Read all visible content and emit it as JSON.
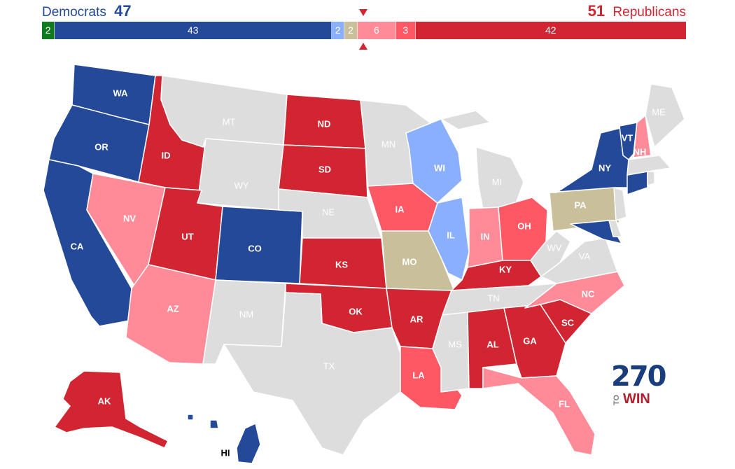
{
  "header": {
    "dem_name": "Democrats",
    "dem_total": "47",
    "rep_total": "51",
    "rep_name": "Republicans"
  },
  "tally": [
    {
      "label": "2",
      "value": 2,
      "color": "#0f7a1e"
    },
    {
      "label": "43",
      "value": 43,
      "color": "#244999"
    },
    {
      "label": "2",
      "value": 2,
      "color": "#8aafff"
    },
    {
      "label": "2",
      "value": 2,
      "color": "#c9c09b"
    },
    {
      "label": "6",
      "value": 6,
      "color": "#ff8b98"
    },
    {
      "label": "3",
      "value": 3,
      "color": "#ff5865"
    },
    {
      "label": "42",
      "value": 42,
      "color": "#d22532"
    }
  ],
  "colors": {
    "safe_dem": "#244999",
    "lean_dem": "#8aafff",
    "tossup": "#c9c09b",
    "lean_rep": "#ff8b98",
    "likely_rep": "#ff5865",
    "safe_rep": "#d22532",
    "no_race": "#dddddd"
  },
  "states": [
    {
      "abbr": "WA",
      "rating": "safe_dem",
      "label": "WA"
    },
    {
      "abbr": "OR",
      "rating": "safe_dem",
      "label": "OR"
    },
    {
      "abbr": "CA",
      "rating": "safe_dem",
      "label": "CA"
    },
    {
      "abbr": "ID",
      "rating": "safe_rep",
      "label": "ID"
    },
    {
      "abbr": "NV",
      "rating": "lean_rep",
      "label": "NV"
    },
    {
      "abbr": "MT",
      "rating": "no_race",
      "label": "MT"
    },
    {
      "abbr": "WY",
      "rating": "no_race",
      "label": "WY"
    },
    {
      "abbr": "UT",
      "rating": "safe_rep",
      "label": "UT"
    },
    {
      "abbr": "AZ",
      "rating": "lean_rep",
      "label": "AZ"
    },
    {
      "abbr": "CO",
      "rating": "safe_dem",
      "label": "CO"
    },
    {
      "abbr": "NM",
      "rating": "no_race",
      "label": "NM"
    },
    {
      "abbr": "ND",
      "rating": "safe_rep",
      "label": "ND"
    },
    {
      "abbr": "SD",
      "rating": "safe_rep",
      "label": "SD"
    },
    {
      "abbr": "NE",
      "rating": "no_race",
      "label": "NE"
    },
    {
      "abbr": "KS",
      "rating": "safe_rep",
      "label": "KS"
    },
    {
      "abbr": "OK",
      "rating": "safe_rep",
      "label": "OK"
    },
    {
      "abbr": "TX",
      "rating": "no_race",
      "label": "TX"
    },
    {
      "abbr": "MN",
      "rating": "no_race",
      "label": "MN"
    },
    {
      "abbr": "IA",
      "rating": "likely_rep",
      "label": "IA"
    },
    {
      "abbr": "MO",
      "rating": "tossup",
      "label": "MO"
    },
    {
      "abbr": "AR",
      "rating": "safe_rep",
      "label": "AR"
    },
    {
      "abbr": "LA",
      "rating": "likely_rep",
      "label": "LA"
    },
    {
      "abbr": "WI",
      "rating": "lean_dem",
      "label": "WI"
    },
    {
      "abbr": "IL",
      "rating": "lean_dem",
      "label": "IL"
    },
    {
      "abbr": "MI",
      "rating": "no_race",
      "label": "MI"
    },
    {
      "abbr": "IN",
      "rating": "lean_rep",
      "label": "IN"
    },
    {
      "abbr": "OH",
      "rating": "likely_rep",
      "label": "OH"
    },
    {
      "abbr": "KY",
      "rating": "safe_rep",
      "label": "KY"
    },
    {
      "abbr": "TN",
      "rating": "no_race",
      "label": "TN"
    },
    {
      "abbr": "MS",
      "rating": "no_race",
      "label": "MS"
    },
    {
      "abbr": "AL",
      "rating": "safe_rep",
      "label": "AL"
    },
    {
      "abbr": "GA",
      "rating": "safe_rep",
      "label": "GA"
    },
    {
      "abbr": "FL",
      "rating": "lean_rep",
      "label": "FL"
    },
    {
      "abbr": "SC",
      "rating": "safe_rep",
      "label": "SC"
    },
    {
      "abbr": "NC",
      "rating": "lean_rep",
      "label": "NC"
    },
    {
      "abbr": "VA",
      "rating": "no_race",
      "label": "VA"
    },
    {
      "abbr": "WV",
      "rating": "no_race",
      "label": "WV"
    },
    {
      "abbr": "PA",
      "rating": "tossup",
      "label": "PA"
    },
    {
      "abbr": "MD",
      "rating": "safe_dem",
      "label": ""
    },
    {
      "abbr": "DE",
      "rating": "no_race",
      "label": ""
    },
    {
      "abbr": "NJ",
      "rating": "no_race",
      "label": ""
    },
    {
      "abbr": "NY",
      "rating": "safe_dem",
      "label": "NY"
    },
    {
      "abbr": "CT",
      "rating": "safe_dem",
      "label": ""
    },
    {
      "abbr": "RI",
      "rating": "no_race",
      "label": ""
    },
    {
      "abbr": "MA",
      "rating": "no_race",
      "label": ""
    },
    {
      "abbr": "VT",
      "rating": "safe_dem",
      "label": "VT"
    },
    {
      "abbr": "NH",
      "rating": "lean_rep",
      "label": "NH"
    },
    {
      "abbr": "ME",
      "rating": "no_race",
      "label": "ME"
    },
    {
      "abbr": "AK",
      "rating": "safe_rep",
      "label": "AK"
    },
    {
      "abbr": "HI",
      "rating": "safe_dem",
      "label": "HI"
    }
  ],
  "logo": {
    "number": "270",
    "to": "TO",
    "win": "WIN"
  }
}
